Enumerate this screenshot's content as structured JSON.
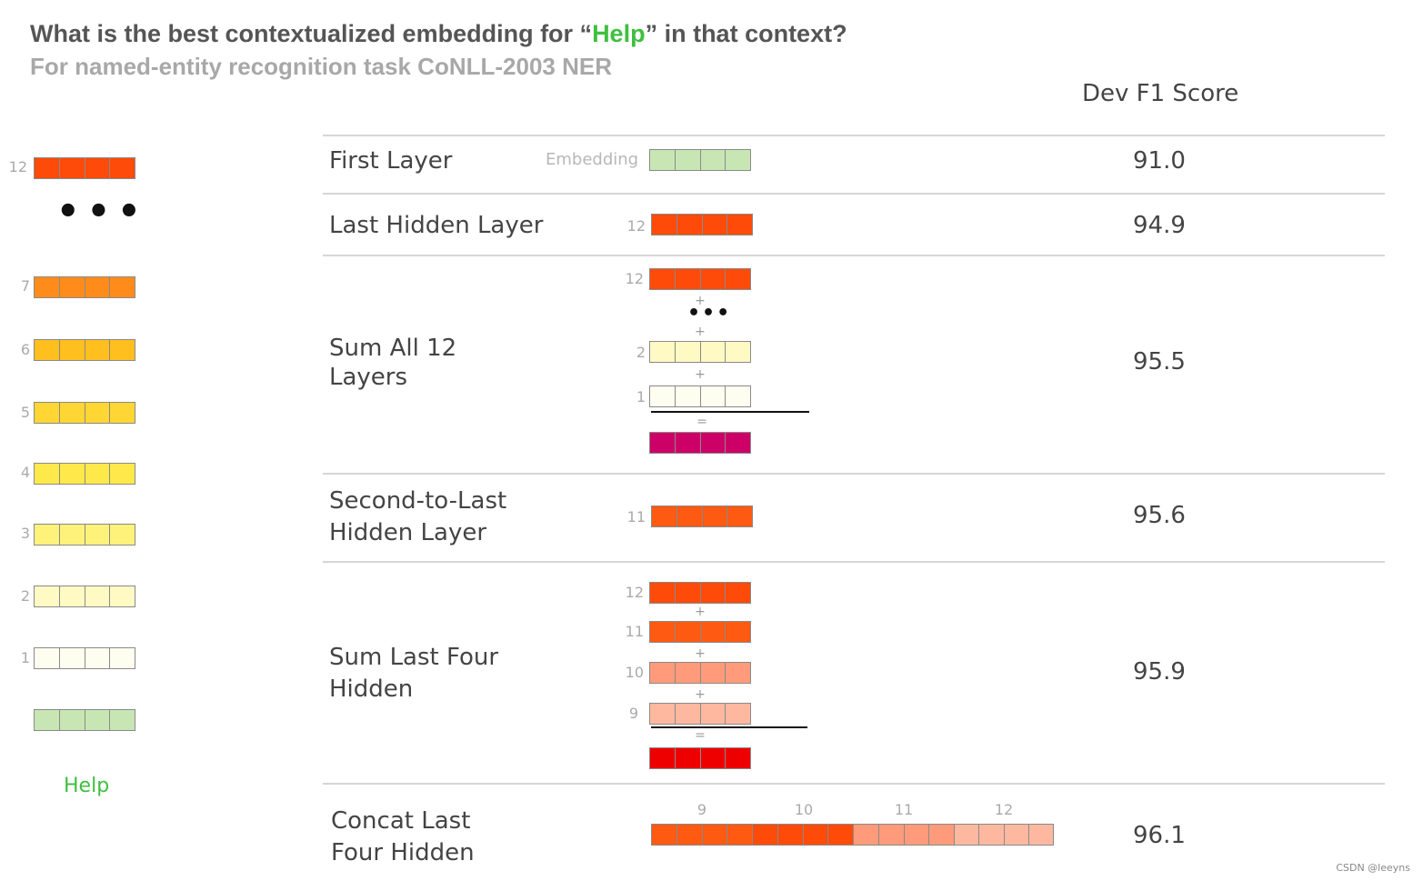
{
  "title": {
    "prefix": "What is the best contextualized embedding for “",
    "highlight": "Help",
    "suffix": "” in that context?"
  },
  "subtitle": "For named-entity recognition task CoNLL-2003 NER",
  "score_header": "Dev F1 Score",
  "word": "Help",
  "colors": {
    "embedding": "#c8e6b4",
    "layer1": "#fefef0",
    "layer2": "#fff9c4",
    "layer3": "#fff27a",
    "layer4": "#ffe94a",
    "layer5": "#ffd633",
    "layer6": "#ffbf1f",
    "layer7": "#ff8c1a",
    "layer9": "#ffb8a0",
    "layer10": "#ff9b7a",
    "layer11": "#ff5a12",
    "layer12": "#ff4b0a",
    "sum_all": "#cc0066",
    "sum_four": "#ee0000"
  },
  "stack_labels": {
    "l12": "12",
    "l7": "7",
    "l6": "6",
    "l5": "5",
    "l4": "4",
    "l3": "3",
    "l2": "2",
    "l1": "1"
  },
  "rows": {
    "first": {
      "label": "First Layer",
      "tag": "Embedding",
      "score": "91.0"
    },
    "last": {
      "label": "Last Hidden Layer",
      "num": "12",
      "score": "94.9"
    },
    "sumall": {
      "label_line1": "Sum All 12",
      "label_line2": "Layers",
      "num_top": "12",
      "num_mid": "2",
      "num_bot": "1",
      "plus": "+",
      "equals": "=",
      "score": "95.5"
    },
    "second": {
      "label_line1": "Second-to-Last",
      "label_line2": "Hidden Layer",
      "num": "11",
      "score": "95.6"
    },
    "sumfour": {
      "label_line1": "Sum Last Four",
      "label_line2": "Hidden",
      "n12": "12",
      "n11": "11",
      "n10": "10",
      "n9": "9",
      "plus": "+",
      "equals": "=",
      "score": "95.9"
    },
    "concat": {
      "label_line1": "Concat Last",
      "label_line2": "Four Hidden",
      "n9": "9",
      "n10": "10",
      "n11": "11",
      "n12": "12",
      "score": "96.1"
    }
  },
  "watermark": "CSDN @leeyns"
}
